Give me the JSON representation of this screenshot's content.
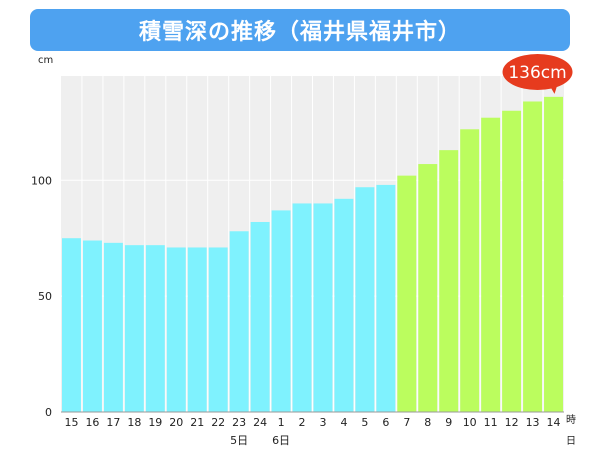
{
  "header": {
    "title": "積雪深の推移（福井県福井市）"
  },
  "colors": {
    "title_bg": "#4ea2f0",
    "plot_bg": "#efefef",
    "bar_past": "#7ff2fe",
    "bar_recent": "#bbfd5e",
    "callout": "#e63b1e"
  },
  "chart_data": {
    "type": "bar",
    "title": "積雪深の推移（福井県福井市）",
    "y_unit_label": "cm",
    "x_unit_label_top": "時",
    "x_unit_label_bottom": "日",
    "ylim": [
      0,
      145
    ],
    "yticks": [
      0,
      50,
      100
    ],
    "grid": true,
    "categories": [
      "15",
      "16",
      "17",
      "18",
      "19",
      "20",
      "21",
      "22",
      "23",
      "24",
      "1",
      "2",
      "3",
      "4",
      "5",
      "6",
      "7",
      "8",
      "9",
      "10",
      "11",
      "12",
      "13",
      "14"
    ],
    "date_labels": [
      {
        "index": 8,
        "text": "5日"
      },
      {
        "index": 10,
        "text": "6日"
      }
    ],
    "values": [
      75,
      74,
      73,
      72,
      72,
      71,
      71,
      71,
      78,
      82,
      87,
      90,
      90,
      92,
      97,
      98,
      102,
      107,
      113,
      122,
      127,
      130,
      134,
      136
    ],
    "highlight_from_index": 16,
    "annotation": {
      "index": 23,
      "text": "136cm"
    }
  }
}
